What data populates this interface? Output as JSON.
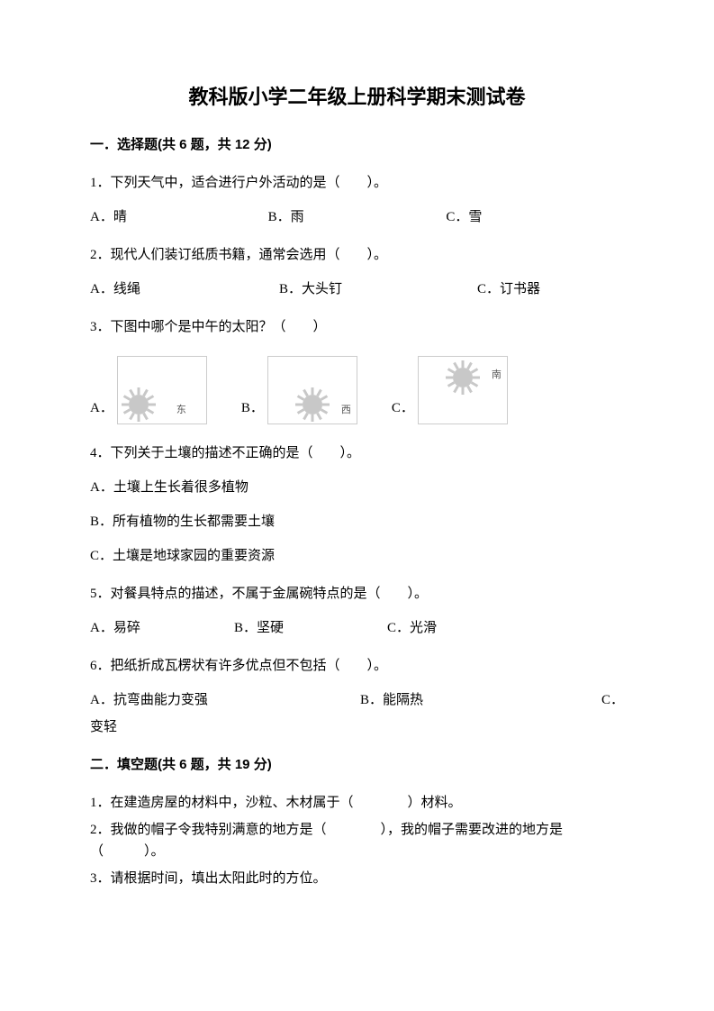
{
  "title": "教科版小学二年级上册科学期末测试卷",
  "section1": {
    "header": "一．选择题(共 6 题，共 12 分)",
    "q1": {
      "text": "1．下列天气中，适合进行户外活动的是（　　）。",
      "a": "A．晴",
      "b": "B．雨",
      "c": "C．雪"
    },
    "q2": {
      "text": "2．现代人们装订纸质书籍，通常会选用（　　）。",
      "a": "A．线绳",
      "b": "B．大头钉",
      "c": "C．订书器"
    },
    "q3": {
      "text": "3．下图中哪个是中午的太阳？（　　）",
      "a": "A．",
      "b": "B．",
      "c": "C．",
      "dir_a": "东",
      "dir_b": "西",
      "dir_c": "南"
    },
    "q4": {
      "text": "4．下列关于土壤的描述不正确的是（　　）。",
      "a": "A．土壤上生长着很多植物",
      "b": "B．所有植物的生长都需要土壤",
      "c": "C．土壤是地球家园的重要资源"
    },
    "q5": {
      "text": "5．对餐具特点的描述，不属于金属碗特点的是（　　）。",
      "a": "A．易碎",
      "b": "B．坚硬",
      "c": "C．光滑"
    },
    "q6": {
      "text": "6．把纸折成瓦楞状有许多优点但不包括（　　）。",
      "a": "A．抗弯曲能力变强",
      "b": "B．能隔热",
      "c": "C．",
      "c_tail": "变轻"
    }
  },
  "section2": {
    "header": "二．填空题(共 6 题，共 19 分)",
    "q1": "1．在建造房屋的材料中，沙粒、木材属于（　　　　）材料。",
    "q2": "2．我做的帽子令我特别满意的地方是（　　　　），我的帽子需要改进的地方是（　　　）。",
    "q3": "3．请根据时间，填出太阳此时的方位。"
  },
  "style": {
    "page_bg": "#ffffff",
    "text_color": "#000000",
    "title_fontsize": 22,
    "body_fontsize": 15,
    "img_border_color": "#cccccc",
    "sun_color": "#c8c8c8",
    "dir_label_color": "#555555"
  }
}
